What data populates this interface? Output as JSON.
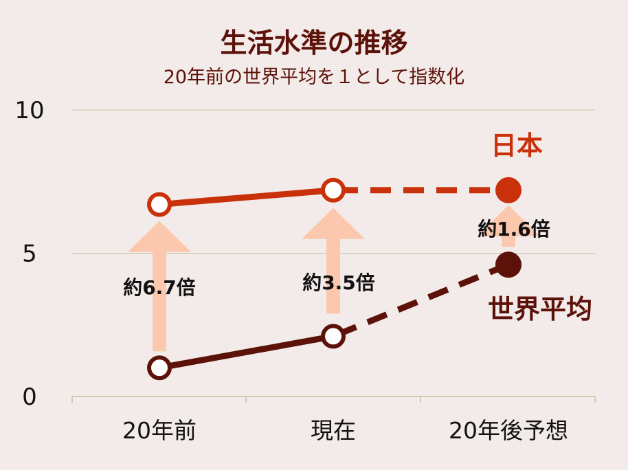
{
  "title": "生活水準の推移",
  "subtitle": "20年前の世界平均を１として指数化",
  "colors": {
    "background": "#f3ebea",
    "japan": "#c9310a",
    "world": "#5c1208",
    "arrow": "#fbc7ad",
    "grid": "#c8c09a",
    "text": "#111111"
  },
  "chart_data": {
    "type": "line",
    "title": "生活水準の推移",
    "subtitle": "20年前の世界平均を１として指数化",
    "categories": [
      "20年前",
      "現在",
      "20年後予想"
    ],
    "yticks": [
      "0",
      "5",
      "10"
    ],
    "ylim": [
      0,
      10
    ],
    "grid": true,
    "series": [
      {
        "name": "日本",
        "values": [
          6.7,
          7.2,
          7.2
        ],
        "projected_from_index": 1
      },
      {
        "name": "世界平均",
        "values": [
          1.0,
          2.1,
          4.6
        ],
        "projected_from_index": 1
      }
    ],
    "annotations": [
      "約6.7倍",
      "約3.5倍",
      "約1.6倍"
    ]
  }
}
